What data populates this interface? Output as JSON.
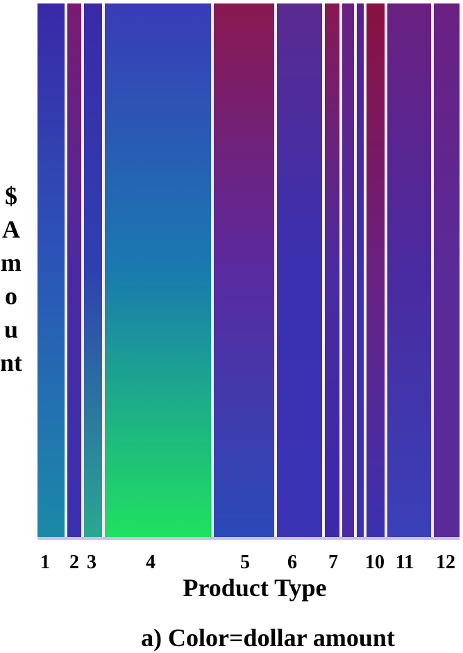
{
  "chart_data": {
    "type": "pixel-bar",
    "xlabel": "Product Type",
    "ylabel": "$ Amount",
    "caption": "a) Color=dollar amount",
    "categories": [
      "1",
      "2",
      "3",
      "4",
      "5",
      "6",
      "7",
      null,
      null,
      "10",
      "11",
      "12"
    ],
    "colors": [
      [
        "#3a28a8",
        "#2a56b8",
        "#1a8aa8"
      ],
      [
        "#7a1a70",
        "#4a2aa0",
        "#3a30b0"
      ],
      [
        "#3a2aa8",
        "#2e40b0",
        "#2aa890"
      ],
      [
        "#3a3ab8",
        "#1a7ab0",
        "#20e060"
      ],
      [
        "#8a1850",
        "#5a2aa0",
        "#2a4ab8"
      ],
      [
        "#5a2a90",
        "#3a30b0",
        "#3a34b4"
      ],
      [
        "#8a1850",
        "#4a2aa0",
        "#3a2aa8"
      ],
      [
        "#6a2080",
        "#4a2aa0",
        "#4a2aa0"
      ],
      [
        "#5a2090",
        "#3a30b0",
        "#3a30b0"
      ],
      [
        "#8a1040",
        "#6a2080",
        "#3a30b0"
      ],
      [
        "#6a2080",
        "#4a2aa0",
        "#3a40b8"
      ],
      [
        "#6a2080",
        "#5a2a98",
        "#5a2a98"
      ]
    ],
    "separator_color": "#f4eef4",
    "baseline_color": "#c8c0e8"
  }
}
